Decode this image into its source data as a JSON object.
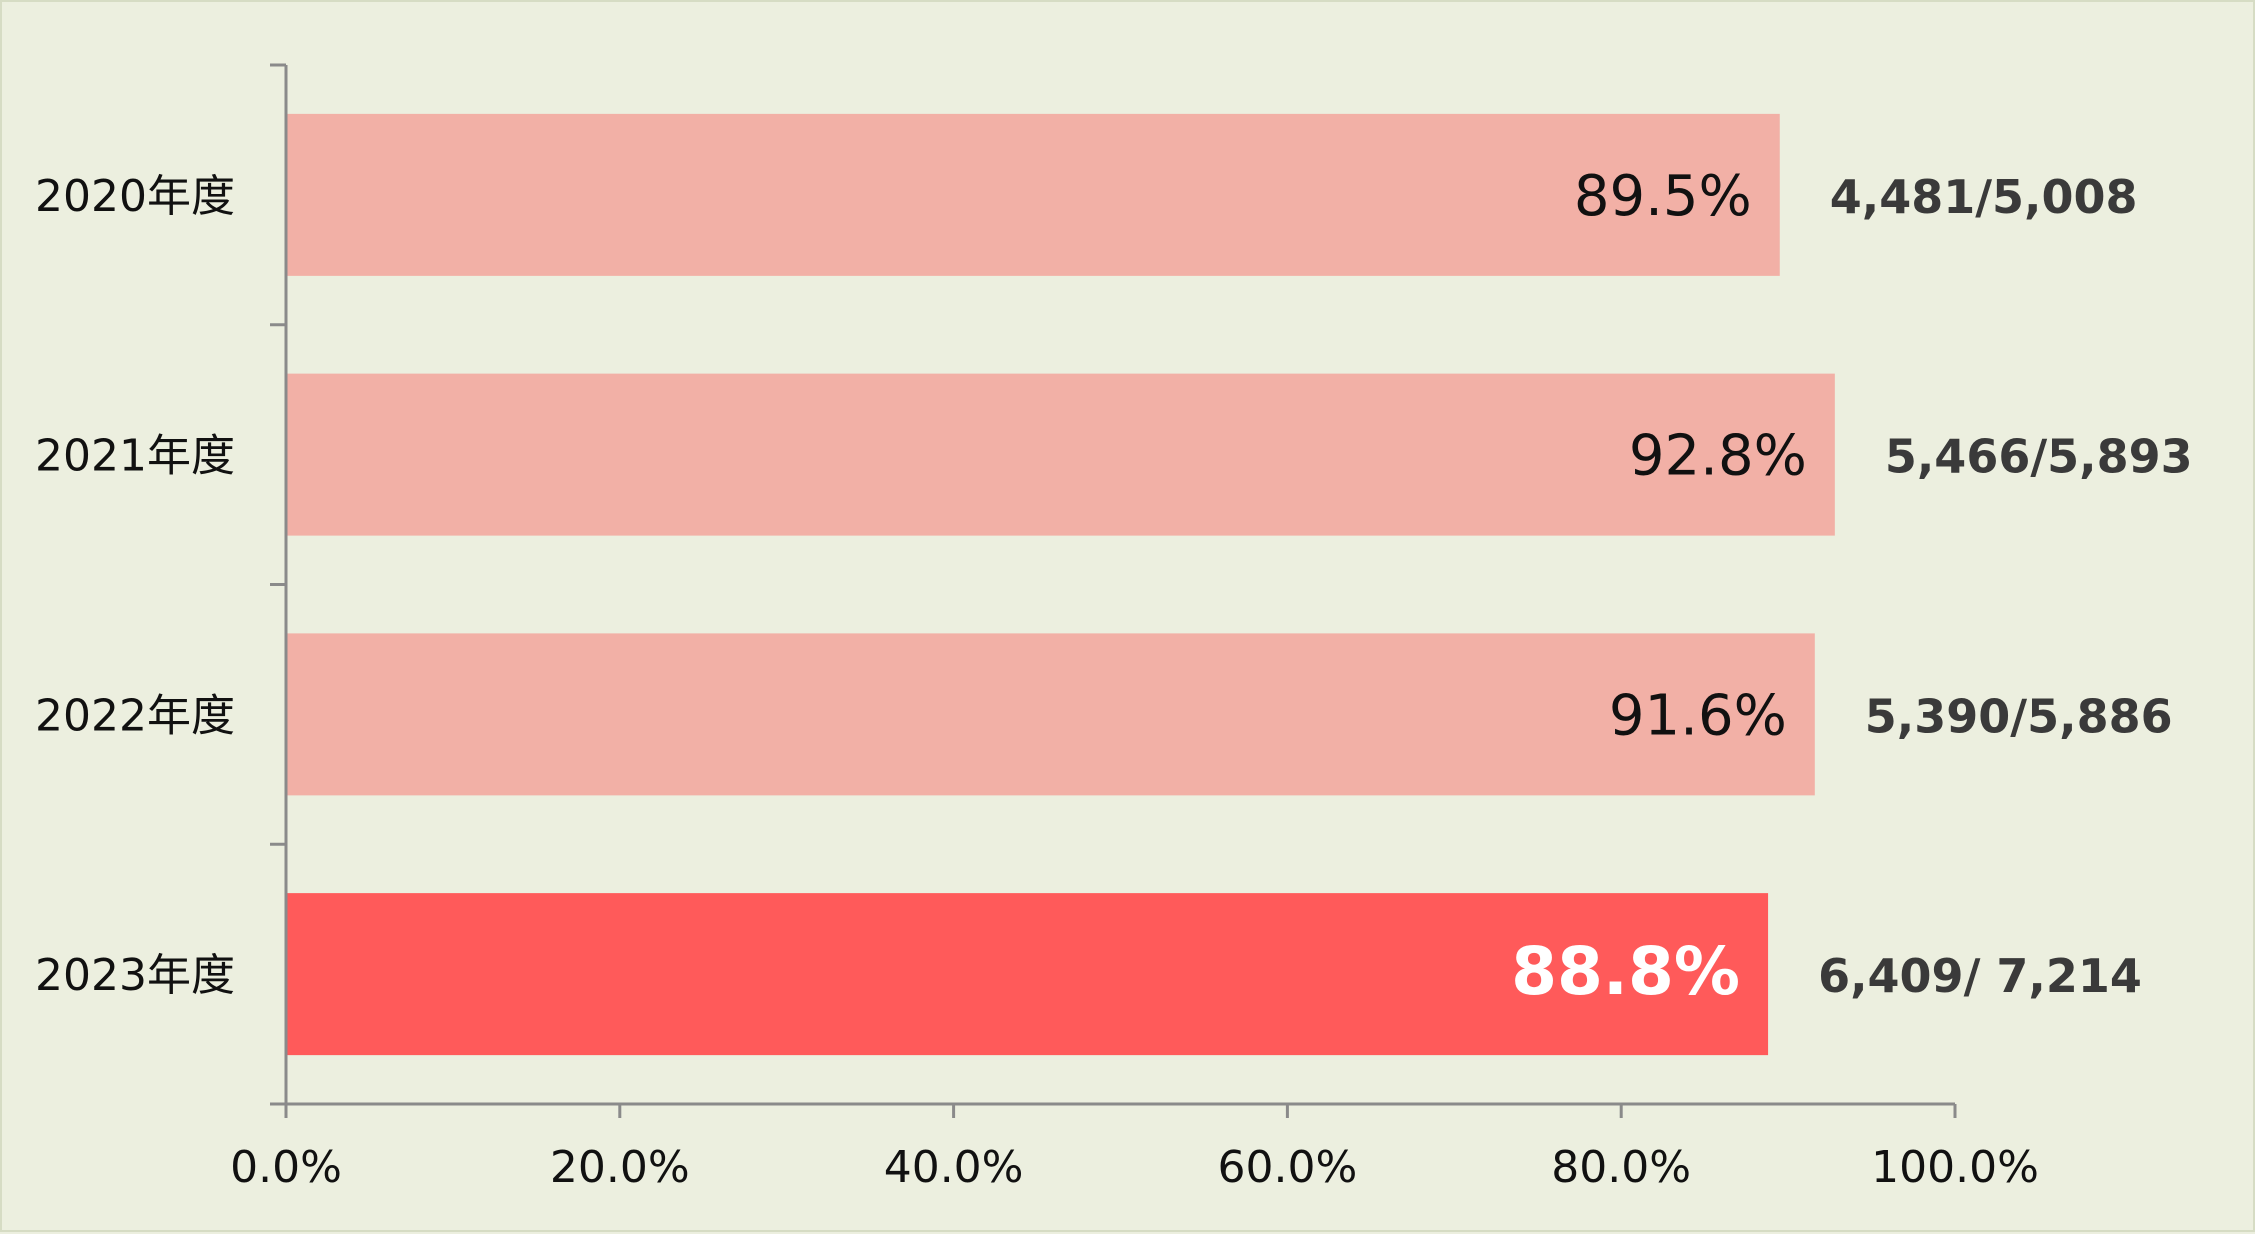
{
  "chart_data": {
    "type": "bar",
    "orientation": "horizontal",
    "categories": [
      "2020年度",
      "2021年度",
      "2022年度",
      "2023年度"
    ],
    "values": [
      89.5,
      92.8,
      91.6,
      88.8
    ],
    "value_labels": [
      "89.5%",
      "92.8%",
      "91.6%",
      "88.8%"
    ],
    "count_labels": [
      "4,481/5,008",
      "5,466/5,893",
      "5,390/5,886",
      "6,409/ 7,214"
    ],
    "xlim": [
      0,
      100
    ],
    "xticks": [
      0,
      20,
      40,
      60,
      80,
      100
    ],
    "xtick_labels": [
      "0.0%",
      "20.0%",
      "40.0%",
      "60.0%",
      "80.0%",
      "100.0%"
    ],
    "highlight_index": 3,
    "colors": {
      "bar": "#f2b0a6",
      "bar_highlight": "#ff5a5a",
      "background": "#ecefdf",
      "axis": "#8a8a8a",
      "text": "#111111",
      "count_text": "#3a3a3a",
      "highlight_label": "#ffffff"
    },
    "title": "",
    "xlabel": "",
    "ylabel": "",
    "grid": false,
    "legend": "none"
  }
}
